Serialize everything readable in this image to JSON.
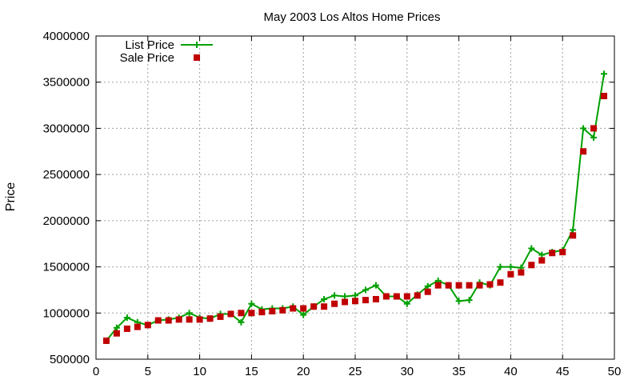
{
  "chart_data": {
    "type": "line",
    "title": "May 2003 Los Altos Home Prices",
    "xlabel": "",
    "ylabel": "Price",
    "xlim": [
      0,
      50
    ],
    "ylim": [
      500000,
      4000000
    ],
    "x_ticks": [
      0,
      5,
      10,
      15,
      20,
      25,
      30,
      35,
      40,
      45,
      50
    ],
    "y_ticks": [
      500000,
      1000000,
      1500000,
      2000000,
      2500000,
      3000000,
      3500000,
      4000000
    ],
    "grid": true,
    "legend_position": "top-left",
    "x": [
      1,
      2,
      3,
      4,
      5,
      6,
      7,
      8,
      9,
      10,
      11,
      12,
      13,
      14,
      15,
      16,
      17,
      18,
      19,
      20,
      21,
      22,
      23,
      24,
      25,
      26,
      27,
      28,
      29,
      30,
      31,
      32,
      33,
      34,
      35,
      36,
      37,
      38,
      39,
      40,
      41,
      42,
      43,
      44,
      45,
      46,
      47,
      48,
      49
    ],
    "series": [
      {
        "name": "List Price",
        "color": "#00a000",
        "style": "line-plus",
        "values": [
          700000,
          840000,
          950000,
          900000,
          870000,
          920000,
          930000,
          950000,
          1000000,
          950000,
          940000,
          990000,
          990000,
          900000,
          1100000,
          1040000,
          1050000,
          1050000,
          1070000,
          980000,
          1070000,
          1150000,
          1190000,
          1180000,
          1190000,
          1250000,
          1300000,
          1180000,
          1180000,
          1100000,
          1200000,
          1290000,
          1350000,
          1300000,
          1130000,
          1140000,
          1330000,
          1300000,
          1500000,
          1500000,
          1490000,
          1700000,
          1630000,
          1660000,
          1680000,
          1900000,
          3000000,
          2900000,
          3590000
        ]
      },
      {
        "name": "Sale Price",
        "color": "#c00000",
        "style": "square",
        "values": [
          700000,
          780000,
          830000,
          850000,
          870000,
          920000,
          920000,
          930000,
          930000,
          930000,
          940000,
          960000,
          990000,
          1000000,
          1000000,
          1010000,
          1020000,
          1030000,
          1050000,
          1050000,
          1070000,
          1070000,
          1100000,
          1120000,
          1130000,
          1140000,
          1150000,
          1180000,
          1180000,
          1180000,
          1190000,
          1230000,
          1300000,
          1300000,
          1300000,
          1300000,
          1300000,
          1310000,
          1330000,
          1420000,
          1440000,
          1520000,
          1570000,
          1650000,
          1660000,
          1840000,
          2750000,
          3000000,
          3350000
        ]
      }
    ]
  }
}
